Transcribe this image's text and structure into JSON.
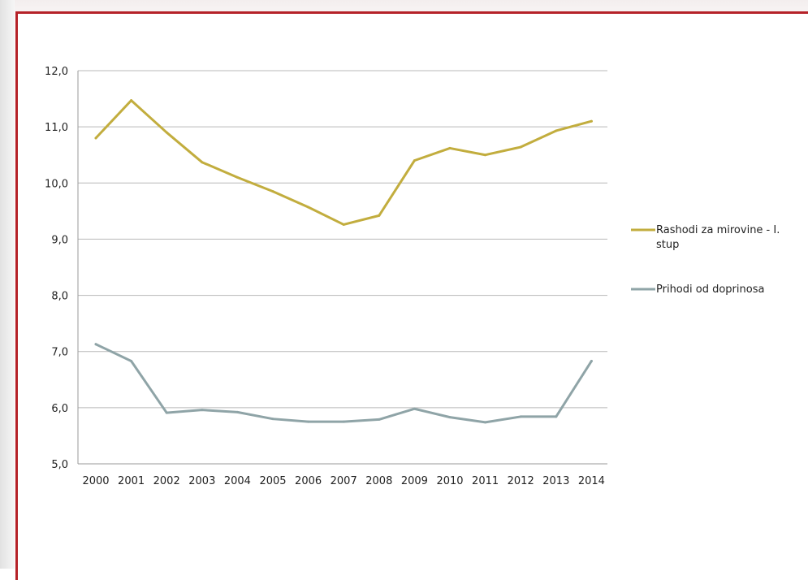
{
  "chart_data": {
    "type": "line",
    "title": "",
    "xlabel": "",
    "ylabel": "",
    "x": [
      "2000",
      "2001",
      "2002",
      "2003",
      "2004",
      "2005",
      "2006",
      "2007",
      "2008",
      "2009",
      "2010",
      "2011",
      "2012",
      "2013",
      "2014"
    ],
    "ylim": [
      5.0,
      12.0
    ],
    "yticks": [
      "5,0",
      "6,0",
      "7,0",
      "8,0",
      "9,0",
      "10,0",
      "11,0",
      "12,0"
    ],
    "grid": true,
    "legend_position": "right",
    "series": [
      {
        "name": "Rashodi za mirovine - I. stup",
        "legend_lines": [
          "Rashodi za mirovine - I.",
          "stup"
        ],
        "color": "#c2ad3e",
        "values": [
          10.8,
          11.47,
          10.9,
          10.37,
          10.1,
          9.85,
          9.57,
          9.26,
          9.42,
          10.4,
          10.62,
          10.5,
          10.64,
          10.93,
          11.1
        ]
      },
      {
        "name": "Prihodi od doprinosa",
        "legend_lines": [
          "Prihodi od doprinosa"
        ],
        "color": "#8fa4a7",
        "values": [
          7.13,
          6.83,
          5.91,
          5.96,
          5.92,
          5.8,
          5.75,
          5.75,
          5.79,
          5.98,
          5.83,
          5.74,
          5.84,
          5.84,
          6.83
        ]
      }
    ]
  }
}
